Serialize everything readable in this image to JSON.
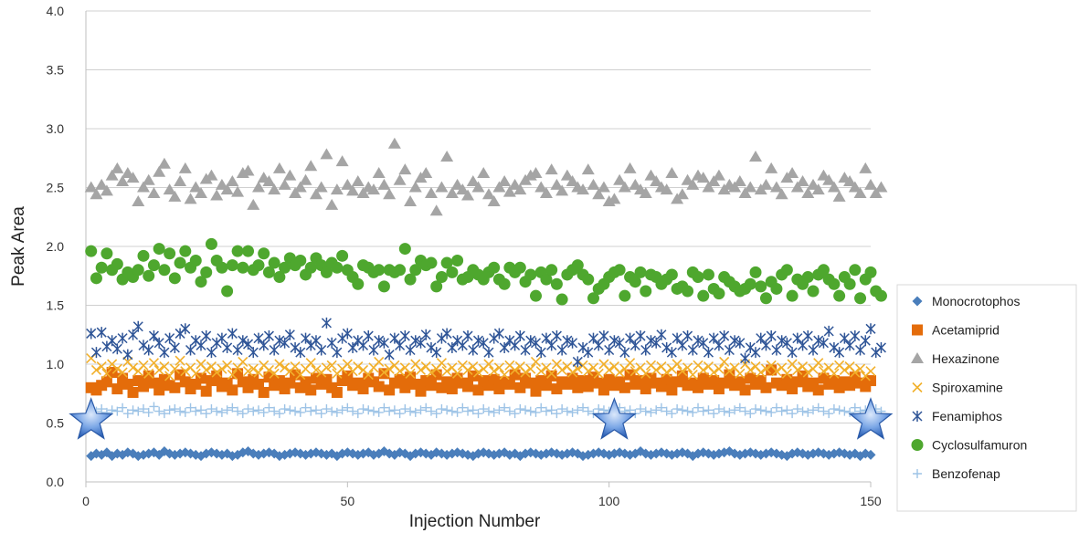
{
  "chart_data": {
    "type": "scatter",
    "title": "",
    "xlabel": "Injection Number",
    "ylabel": "Peak Area",
    "xlim": [
      0,
      150
    ],
    "ylim": [
      0,
      4
    ],
    "x_ticks": [
      "0",
      "50",
      "100",
      "150"
    ],
    "x_tick_values": [
      0,
      50,
      100,
      150
    ],
    "y_ticks": [
      "0.0",
      "0.5",
      "1.0",
      "1.5",
      "2.0",
      "2.5",
      "3.0",
      "3.5",
      "4.0"
    ],
    "y_tick_values": [
      0,
      0.5,
      1,
      1.5,
      2,
      2.5,
      3,
      3.5,
      4
    ],
    "grid": "horizontal",
    "legend_position": "right",
    "x_points": "1-150",
    "series": [
      {
        "name": "Monocrotophos",
        "marker": "diamond",
        "color": "#4a7ebb",
        "mean": 0.24,
        "spread": 0.03,
        "values": [
          0.22,
          0.24,
          0.23,
          0.25,
          0.22,
          0.24,
          0.23,
          0.25,
          0.24,
          0.22,
          0.23,
          0.24,
          0.25,
          0.23,
          0.26,
          0.24,
          0.23,
          0.24,
          0.25,
          0.24,
          0.23,
          0.22,
          0.24,
          0.25,
          0.24,
          0.23,
          0.24,
          0.22,
          0.23,
          0.25,
          0.26,
          0.24,
          0.23,
          0.24,
          0.25,
          0.24,
          0.22,
          0.23,
          0.24,
          0.25,
          0.24,
          0.23,
          0.24,
          0.25,
          0.24,
          0.23,
          0.24,
          0.22,
          0.24,
          0.25,
          0.24,
          0.23,
          0.24,
          0.25,
          0.23,
          0.24,
          0.26,
          0.24,
          0.23,
          0.25,
          0.24,
          0.22,
          0.24,
          0.25,
          0.24,
          0.23,
          0.25,
          0.24,
          0.23,
          0.24,
          0.25,
          0.24,
          0.23,
          0.22,
          0.24,
          0.25,
          0.24,
          0.23,
          0.24,
          0.25,
          0.23,
          0.24,
          0.22,
          0.24,
          0.25,
          0.24,
          0.23,
          0.24,
          0.25,
          0.24,
          0.23,
          0.24,
          0.25,
          0.24,
          0.22,
          0.23,
          0.24,
          0.25,
          0.24,
          0.23,
          0.24,
          0.25,
          0.24,
          0.23,
          0.24,
          0.26,
          0.24,
          0.23,
          0.24,
          0.25,
          0.24,
          0.23,
          0.24,
          0.25,
          0.24,
          0.22,
          0.24,
          0.25,
          0.24,
          0.23,
          0.24,
          0.25,
          0.26,
          0.24,
          0.23,
          0.24,
          0.25,
          0.24,
          0.23,
          0.24,
          0.25,
          0.24,
          0.23,
          0.22,
          0.24,
          0.25,
          0.24,
          0.23,
          0.24,
          0.25,
          0.24,
          0.23,
          0.24,
          0.25,
          0.24,
          0.23,
          0.24,
          0.22,
          0.24,
          0.23
        ]
      },
      {
        "name": "Acetamiprid",
        "marker": "square",
        "color": "#e46c0a",
        "mean": 0.84,
        "spread": 0.08,
        "values": [
          0.8,
          0.78,
          0.82,
          0.85,
          0.93,
          0.79,
          0.88,
          0.83,
          0.76,
          0.86,
          0.81,
          0.9,
          0.84,
          0.78,
          0.87,
          0.82,
          0.8,
          0.91,
          0.85,
          0.79,
          0.83,
          0.88,
          0.77,
          0.86,
          0.9,
          0.81,
          0.84,
          0.78,
          0.92,
          0.85,
          0.8,
          0.87,
          0.83,
          0.76,
          0.89,
          0.82,
          0.86,
          0.79,
          0.84,
          0.91,
          0.8,
          0.85,
          0.78,
          0.88,
          0.83,
          0.87,
          0.8,
          0.76,
          0.86,
          0.9,
          0.82,
          0.84,
          0.79,
          0.88,
          0.85,
          0.81,
          0.92,
          0.78,
          0.84,
          0.87,
          0.8,
          0.89,
          0.83,
          0.77,
          0.86,
          0.82,
          0.91,
          0.8,
          0.85,
          0.79,
          0.88,
          0.84,
          0.81,
          0.9,
          0.78,
          0.86,
          0.82,
          0.87,
          0.79,
          0.85,
          0.83,
          0.91,
          0.8,
          0.88,
          0.84,
          0.77,
          0.86,
          0.82,
          0.9,
          0.79,
          0.85,
          0.83,
          0.88,
          0.8,
          0.86,
          0.81,
          0.89,
          0.84,
          0.78,
          0.87,
          0.82,
          0.85,
          0.8,
          0.91,
          0.83,
          0.86,
          0.79,
          0.88,
          0.84,
          0.81,
          0.87,
          0.78,
          0.85,
          0.9,
          0.82,
          0.84,
          0.8,
          0.88,
          0.83,
          0.86,
          0.79,
          0.84,
          0.91,
          0.82,
          0.85,
          0.78,
          0.88,
          0.83,
          0.86,
          0.8,
          0.95,
          0.84,
          0.82,
          0.87,
          0.79,
          0.85,
          0.9,
          0.81,
          0.84,
          0.78,
          0.88,
          0.83,
          0.86,
          0.8,
          0.85,
          0.82,
          0.89,
          0.84,
          0.81,
          0.86
        ]
      },
      {
        "name": "Hexazinone",
        "marker": "triangle",
        "color": "#a5a5a5",
        "mean": 2.5,
        "spread": 0.14,
        "values": [
          2.5,
          2.44,
          2.52,
          2.47,
          2.6,
          2.66,
          2.55,
          2.62,
          2.58,
          2.38,
          2.5,
          2.56,
          2.45,
          2.63,
          2.7,
          2.48,
          2.42,
          2.55,
          2.66,
          2.4,
          2.5,
          2.45,
          2.57,
          2.6,
          2.43,
          2.52,
          2.48,
          2.55,
          2.46,
          2.62,
          2.64,
          2.35,
          2.5,
          2.58,
          2.55,
          2.48,
          2.66,
          2.52,
          2.6,
          2.45,
          2.5,
          2.56,
          2.68,
          2.44,
          2.5,
          2.78,
          2.35,
          2.48,
          2.72,
          2.52,
          2.47,
          2.55,
          2.45,
          2.5,
          2.48,
          2.62,
          2.52,
          2.44,
          2.87,
          2.56,
          2.65,
          2.38,
          2.5,
          2.58,
          2.62,
          2.45,
          2.3,
          2.5,
          2.76,
          2.45,
          2.52,
          2.48,
          2.43,
          2.55,
          2.5,
          2.62,
          2.44,
          2.38,
          2.5,
          2.55,
          2.46,
          2.52,
          2.48,
          2.56,
          2.6,
          2.62,
          2.5,
          2.45,
          2.65,
          2.52,
          2.47,
          2.6,
          2.55,
          2.5,
          2.48,
          2.65,
          2.52,
          2.44,
          2.5,
          2.38,
          2.4,
          2.56,
          2.5,
          2.66,
          2.52,
          2.48,
          2.45,
          2.6,
          2.55,
          2.5,
          2.48,
          2.62,
          2.4,
          2.44,
          2.56,
          2.52,
          2.6,
          2.58,
          2.5,
          2.55,
          2.6,
          2.48,
          2.52,
          2.5,
          2.55,
          2.45,
          2.5,
          2.76,
          2.48,
          2.52,
          2.66,
          2.5,
          2.44,
          2.58,
          2.62,
          2.5,
          2.55,
          2.45,
          2.52,
          2.48,
          2.6,
          2.56,
          2.5,
          2.42,
          2.58,
          2.55,
          2.5,
          2.45,
          2.66,
          2.52,
          2.45,
          2.5
        ]
      },
      {
        "name": "Spiroxamine",
        "marker": "x",
        "color": "#f2b02b",
        "mean": 0.95,
        "spread": 0.07,
        "values": [
          1.05,
          0.95,
          0.98,
          0.92,
          1.0,
          0.96,
          0.93,
          1.02,
          0.97,
          0.94,
          0.99,
          0.92,
          1.01,
          0.95,
          0.98,
          0.9,
          0.96,
          1.03,
          0.94,
          0.97,
          0.92,
          1.0,
          0.95,
          0.98,
          0.93,
          0.96,
          0.99,
          0.91,
          0.97,
          1.02,
          0.94,
          0.96,
          0.93,
          0.99,
          0.95,
          0.92,
          1.0,
          0.97,
          0.94,
          0.98,
          0.91,
          0.96,
          1.01,
          0.95,
          0.93,
          0.97,
          0.99,
          0.92,
          0.96,
          1.0,
          0.94,
          0.98,
          0.95,
          0.91,
          0.97,
          1.02,
          0.93,
          0.96,
          0.99,
          0.94,
          0.97,
          0.92,
          1.0,
          0.95,
          0.98,
          0.93,
          0.96,
          1.01,
          0.94,
          0.97,
          0.92,
          0.99,
          0.95,
          0.98,
          0.93,
          0.96,
          1.0,
          0.94,
          0.97,
          0.91,
          0.99,
          0.95,
          0.98,
          0.93,
          0.96,
          1.02,
          0.94,
          0.97,
          0.92,
          1.0,
          0.95,
          0.98,
          0.93,
          0.96,
          0.99,
          0.94,
          0.97,
          0.92,
          1.0,
          0.95,
          0.98,
          0.93,
          0.96,
          1.01,
          0.94,
          0.97,
          0.92,
          0.99,
          0.95,
          0.98,
          0.93,
          0.96,
          1.0,
          0.94,
          0.97,
          0.91,
          0.99,
          0.95,
          0.98,
          0.93,
          0.96,
          1.02,
          0.94,
          0.97,
          0.92,
          1.0,
          0.95,
          0.98,
          0.93,
          0.96,
          0.99,
          0.94,
          0.97,
          0.92,
          1.0,
          0.95,
          0.98,
          0.93,
          0.96,
          1.01,
          0.94,
          0.97,
          0.92,
          0.99,
          0.95,
          0.98,
          0.93,
          0.96,
          0.9,
          0.94
        ]
      },
      {
        "name": "Fenamiphos",
        "marker": "star-cross",
        "color": "#2f5597",
        "mean": 1.17,
        "spread": 0.09,
        "values": [
          1.26,
          1.1,
          1.27,
          1.15,
          1.2,
          1.13,
          1.22,
          1.08,
          1.25,
          1.32,
          1.16,
          1.12,
          1.24,
          1.18,
          1.1,
          1.22,
          1.14,
          1.26,
          1.3,
          1.12,
          1.2,
          1.16,
          1.24,
          1.1,
          1.18,
          1.22,
          1.14,
          1.26,
          1.12,
          1.2,
          1.17,
          1.1,
          1.22,
          1.16,
          1.24,
          1.12,
          1.2,
          1.18,
          1.25,
          1.14,
          1.1,
          1.22,
          1.16,
          1.2,
          1.12,
          1.35,
          1.18,
          1.1,
          1.22,
          1.26,
          1.14,
          1.2,
          1.16,
          1.24,
          1.12,
          1.2,
          1.18,
          1.08,
          1.22,
          1.16,
          1.24,
          1.12,
          1.2,
          1.18,
          1.25,
          1.14,
          1.1,
          1.22,
          1.26,
          1.14,
          1.2,
          1.16,
          1.24,
          1.12,
          1.2,
          1.18,
          1.1,
          1.22,
          1.26,
          1.14,
          1.2,
          1.16,
          1.24,
          1.12,
          1.2,
          1.18,
          1.1,
          1.22,
          1.16,
          1.24,
          1.12,
          1.2,
          1.18,
          1.02,
          1.14,
          1.1,
          1.22,
          1.16,
          1.24,
          1.12,
          1.2,
          1.18,
          1.1,
          1.22,
          1.16,
          1.24,
          1.12,
          1.2,
          1.18,
          1.25,
          1.14,
          1.1,
          1.22,
          1.16,
          1.24,
          1.12,
          1.2,
          1.18,
          1.1,
          1.22,
          1.16,
          1.24,
          1.12,
          1.2,
          1.18,
          1.05,
          1.14,
          1.1,
          1.22,
          1.16,
          1.24,
          1.12,
          1.2,
          1.18,
          1.1,
          1.22,
          1.16,
          1.24,
          1.12,
          1.2,
          1.18,
          1.28,
          1.14,
          1.1,
          1.22,
          1.16,
          1.24,
          1.12,
          1.2,
          1.3,
          1.1,
          1.14
        ]
      },
      {
        "name": "Cyclosulfamuron",
        "marker": "circle",
        "color": "#4ea72e",
        "mean": 1.78,
        "spread": 0.1,
        "values": [
          1.96,
          1.73,
          1.82,
          1.94,
          1.8,
          1.85,
          1.72,
          1.78,
          1.74,
          1.8,
          1.92,
          1.75,
          1.84,
          1.98,
          1.8,
          1.94,
          1.73,
          1.86,
          1.96,
          1.82,
          1.88,
          1.7,
          1.78,
          2.02,
          1.88,
          1.82,
          1.62,
          1.84,
          1.96,
          1.82,
          1.96,
          1.8,
          1.84,
          1.94,
          1.78,
          1.86,
          1.74,
          1.82,
          1.9,
          1.84,
          1.88,
          1.76,
          1.82,
          1.9,
          1.84,
          1.78,
          1.86,
          1.82,
          1.92,
          1.8,
          1.74,
          1.68,
          1.84,
          1.82,
          1.78,
          1.8,
          1.66,
          1.8,
          1.78,
          1.8,
          1.98,
          1.72,
          1.8,
          1.88,
          1.84,
          1.86,
          1.66,
          1.74,
          1.86,
          1.78,
          1.88,
          1.72,
          1.74,
          1.8,
          1.76,
          1.72,
          1.78,
          1.82,
          1.72,
          1.68,
          1.82,
          1.78,
          1.82,
          1.7,
          1.76,
          1.58,
          1.78,
          1.72,
          1.8,
          1.68,
          1.55,
          1.76,
          1.8,
          1.84,
          1.76,
          1.72,
          1.56,
          1.64,
          1.68,
          1.74,
          1.78,
          1.8,
          1.58,
          1.74,
          1.7,
          1.78,
          1.62,
          1.76,
          1.74,
          1.68,
          1.72,
          1.76,
          1.64,
          1.66,
          1.62,
          1.78,
          1.74,
          1.58,
          1.76,
          1.64,
          1.6,
          1.74,
          1.7,
          1.66,
          1.62,
          1.64,
          1.68,
          1.78,
          1.66,
          1.56,
          1.7,
          1.64,
          1.76,
          1.8,
          1.58,
          1.72,
          1.68,
          1.74,
          1.62,
          1.76,
          1.8,
          1.72,
          1.68,
          1.58,
          1.74,
          1.68,
          1.8,
          1.56,
          1.72,
          1.78,
          1.62,
          1.58
        ]
      },
      {
        "name": "Benzofenap",
        "marker": "plus",
        "color": "#9dc3e6",
        "mean": 0.6,
        "spread": 0.04,
        "values": [
          0.58,
          0.6,
          0.62,
          0.59,
          0.61,
          0.6,
          0.63,
          0.58,
          0.61,
          0.6,
          0.62,
          0.59,
          0.64,
          0.6,
          0.58,
          0.61,
          0.62,
          0.6,
          0.59,
          0.63,
          0.6,
          0.61,
          0.58,
          0.62,
          0.6,
          0.59,
          0.61,
          0.63,
          0.6,
          0.58,
          0.62,
          0.6,
          0.61,
          0.59,
          0.63,
          0.6,
          0.58,
          0.62,
          0.61,
          0.6,
          0.59,
          0.63,
          0.6,
          0.61,
          0.58,
          0.62,
          0.6,
          0.59,
          0.61,
          0.63,
          0.6,
          0.58,
          0.62,
          0.61,
          0.6,
          0.59,
          0.63,
          0.6,
          0.61,
          0.58,
          0.62,
          0.6,
          0.59,
          0.61,
          0.63,
          0.6,
          0.58,
          0.62,
          0.61,
          0.6,
          0.59,
          0.63,
          0.6,
          0.61,
          0.58,
          0.62,
          0.6,
          0.59,
          0.61,
          0.63,
          0.6,
          0.58,
          0.62,
          0.61,
          0.6,
          0.59,
          0.63,
          0.6,
          0.61,
          0.58,
          0.62,
          0.6,
          0.59,
          0.61,
          0.63,
          0.6,
          0.58,
          0.62,
          0.61,
          0.6,
          0.59,
          0.63,
          0.6,
          0.61,
          0.58,
          0.62,
          0.6,
          0.59,
          0.61,
          0.63,
          0.6,
          0.58,
          0.62,
          0.61,
          0.6,
          0.59,
          0.63,
          0.6,
          0.61,
          0.58,
          0.62,
          0.6,
          0.59,
          0.61,
          0.63,
          0.6,
          0.58,
          0.62,
          0.61,
          0.6,
          0.59,
          0.63,
          0.6,
          0.61,
          0.58,
          0.62,
          0.6,
          0.59,
          0.61,
          0.63,
          0.6,
          0.58,
          0.62,
          0.61,
          0.6,
          0.59,
          0.63,
          0.6,
          0.61,
          0.58,
          0.62,
          0.6
        ]
      }
    ],
    "markers": [
      {
        "type": "star-icon",
        "x": 1,
        "y": 0.52
      },
      {
        "type": "star-icon",
        "x": 101,
        "y": 0.52
      },
      {
        "type": "star-icon",
        "x": 150,
        "y": 0.52
      }
    ]
  }
}
